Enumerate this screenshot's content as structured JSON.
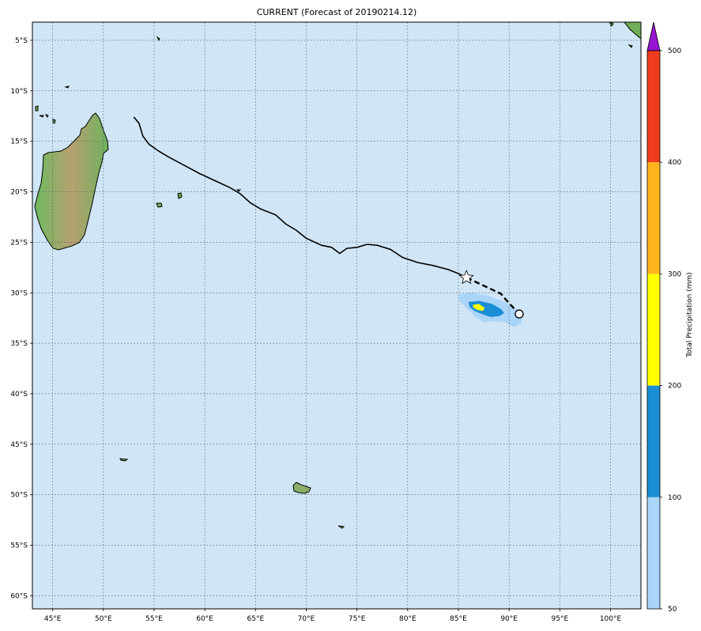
{
  "title": "CURRENT (Forecast of 20190214.12)",
  "map": {
    "lon_range": [
      43,
      103
    ],
    "lat_range": [
      -61.3,
      -3.2
    ],
    "grid": true,
    "ocean_color": "#d0e6f6",
    "lon_ticks": [
      {
        "value": 45,
        "label": "45°E"
      },
      {
        "value": 50,
        "label": "50°E"
      },
      {
        "value": 55,
        "label": "55°E"
      },
      {
        "value": 60,
        "label": "60°E"
      },
      {
        "value": 65,
        "label": "65°E"
      },
      {
        "value": 70,
        "label": "70°E"
      },
      {
        "value": 75,
        "label": "75°E"
      },
      {
        "value": 80,
        "label": "80°E"
      },
      {
        "value": 85,
        "label": "85°E"
      },
      {
        "value": 90,
        "label": "90°E"
      },
      {
        "value": 95,
        "label": "95°E"
      },
      {
        "value": 100,
        "label": "100°E"
      }
    ],
    "lat_ticks": [
      {
        "value": -5,
        "label": "5°S"
      },
      {
        "value": -10,
        "label": "10°S"
      },
      {
        "value": -15,
        "label": "15°S"
      },
      {
        "value": -20,
        "label": "20°S"
      },
      {
        "value": -25,
        "label": "25°S"
      },
      {
        "value": -30,
        "label": "30°S"
      },
      {
        "value": -35,
        "label": "35°S"
      },
      {
        "value": -40,
        "label": "40°S"
      },
      {
        "value": -45,
        "label": "45°S"
      },
      {
        "value": -50,
        "label": "50°S"
      },
      {
        "value": -55,
        "label": "55°S"
      },
      {
        "value": -60,
        "label": "60°S"
      }
    ],
    "past_track": [
      [
        53.0,
        -12.6
      ],
      [
        53.5,
        -13.2
      ],
      [
        53.9,
        -14.5
      ],
      [
        54.5,
        -15.3
      ],
      [
        55.5,
        -16.0
      ],
      [
        56.5,
        -16.6
      ],
      [
        58.0,
        -17.4
      ],
      [
        59.5,
        -18.2
      ],
      [
        61.0,
        -18.9
      ],
      [
        62.5,
        -19.6
      ],
      [
        63.5,
        -20.2
      ],
      [
        64.5,
        -21.1
      ],
      [
        65.5,
        -21.7
      ],
      [
        67.0,
        -22.3
      ],
      [
        68.0,
        -23.2
      ],
      [
        69.0,
        -23.8
      ],
      [
        70.0,
        -24.6
      ],
      [
        71.5,
        -25.3
      ],
      [
        72.5,
        -25.5
      ],
      [
        73.3,
        -26.1
      ],
      [
        74.0,
        -25.6
      ],
      [
        75.0,
        -25.5
      ],
      [
        76.0,
        -25.2
      ],
      [
        77.0,
        -25.3
      ],
      [
        78.3,
        -25.7
      ],
      [
        79.5,
        -26.5
      ],
      [
        81.0,
        -27.0
      ],
      [
        82.5,
        -27.3
      ],
      [
        84.0,
        -27.7
      ],
      [
        85.0,
        -28.1
      ],
      [
        85.8,
        -28.5
      ]
    ],
    "forecast_track": [
      [
        85.8,
        -28.5
      ],
      [
        87.5,
        -29.3
      ],
      [
        89.2,
        -30.1
      ],
      [
        89.7,
        -30.7
      ],
      [
        91.0,
        -32.1
      ]
    ],
    "current_position": {
      "lon": 85.8,
      "lat": -28.5,
      "marker": "star-icon"
    },
    "end_position": {
      "lon": 91.0,
      "lat": -32.1,
      "marker": "circle-icon"
    },
    "precip_bands": [
      {
        "level": 50,
        "color": "#aad4f8",
        "points": [
          [
            85.0,
            -30.2
          ],
          [
            86.2,
            -30.0
          ],
          [
            88.0,
            -30.3
          ],
          [
            89.5,
            -30.9
          ],
          [
            90.8,
            -31.6
          ],
          [
            91.3,
            -32.3
          ],
          [
            91.2,
            -33.0
          ],
          [
            90.5,
            -33.4
          ],
          [
            89.6,
            -32.9
          ],
          [
            88.3,
            -32.8
          ],
          [
            87.5,
            -32.9
          ],
          [
            86.7,
            -32.4
          ],
          [
            85.7,
            -31.4
          ],
          [
            85.1,
            -30.8
          ]
        ]
      },
      {
        "level": 100,
        "color": "#1a8fd6",
        "points": [
          [
            86.0,
            -30.9
          ],
          [
            87.1,
            -30.8
          ],
          [
            88.3,
            -31.1
          ],
          [
            89.2,
            -31.6
          ],
          [
            89.5,
            -32.0
          ],
          [
            89.1,
            -32.3
          ],
          [
            88.2,
            -32.4
          ],
          [
            87.3,
            -32.1
          ],
          [
            86.6,
            -31.8
          ],
          [
            86.1,
            -31.4
          ]
        ]
      },
      {
        "level": 200,
        "color": "#ffff00",
        "points": [
          [
            86.4,
            -31.2
          ],
          [
            87.0,
            -31.1
          ],
          [
            87.6,
            -31.5
          ],
          [
            87.4,
            -31.8
          ],
          [
            86.9,
            -31.7
          ],
          [
            86.5,
            -31.5
          ]
        ]
      }
    ]
  },
  "colorbar": {
    "label": "Total Precipitation (mm)",
    "levels": [
      {
        "value": 50,
        "label": "50",
        "color": "#aad4f8"
      },
      {
        "value": 100,
        "label": "100",
        "color": "#1a8fd6"
      },
      {
        "value": 200,
        "label": "200",
        "color": "#ffff00"
      },
      {
        "value": 300,
        "label": "300",
        "color": "#ffb41e"
      },
      {
        "value": 400,
        "label": "400",
        "color": "#f03c1e"
      },
      {
        "value": 500,
        "label": "500",
        "color": "#9614d2"
      }
    ]
  }
}
